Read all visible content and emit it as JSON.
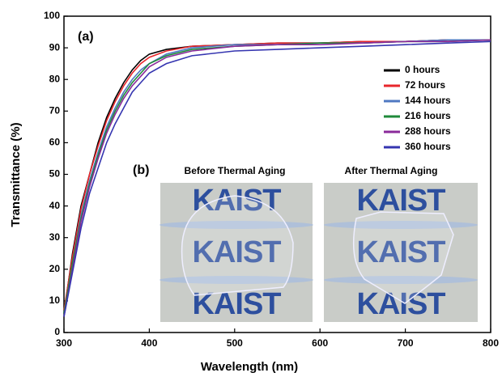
{
  "chart_data": {
    "type": "line",
    "x_label": "Wavelength (nm)",
    "y_label": "Transmittance (%)",
    "x": [
      300,
      310,
      320,
      330,
      340,
      350,
      360,
      370,
      380,
      390,
      400,
      420,
      450,
      500,
      550,
      600,
      650,
      700,
      750,
      800
    ],
    "series": [
      {
        "name": "0 hours",
        "color": "#000000",
        "values": [
          6,
          25,
          40,
          50,
          60,
          68,
          74,
          79,
          83,
          86,
          88,
          89.5,
          90.5,
          91,
          91.5,
          91.5,
          92,
          92,
          92.5,
          92.5
        ]
      },
      {
        "name": "72 hours",
        "color": "#e8262b",
        "values": [
          7,
          24,
          39,
          50,
          59,
          67,
          73,
          78,
          82,
          85,
          87,
          89,
          90.5,
          91,
          91.5,
          91.5,
          92,
          92,
          92.5,
          92.5
        ]
      },
      {
        "name": "144 hours",
        "color": "#4f78c2",
        "values": [
          6,
          22,
          37,
          48,
          57,
          65,
          71,
          76,
          80,
          83,
          85,
          88,
          90,
          91,
          91,
          91.5,
          91.5,
          92,
          92.5,
          92.5
        ]
      },
      {
        "name": "216 hours",
        "color": "#1f8a3a",
        "values": [
          6,
          22,
          36,
          47,
          56,
          64,
          70,
          75,
          79,
          82,
          85,
          87.5,
          89.5,
          90.5,
          91,
          91.5,
          91.5,
          92,
          92,
          92.5
        ]
      },
      {
        "name": "288 hours",
        "color": "#8a2a9a",
        "values": [
          5,
          20,
          35,
          46,
          55,
          63,
          69,
          74,
          78,
          81,
          84,
          87,
          89,
          90.5,
          91,
          91,
          91.5,
          92,
          92,
          92.5
        ]
      },
      {
        "name": "360 hours",
        "color": "#3535b0",
        "values": [
          5,
          19,
          33,
          44,
          52,
          60,
          66,
          71,
          76,
          79,
          82,
          85,
          87.5,
          89,
          89.5,
          90,
          90.5,
          91,
          91.5,
          92
        ]
      }
    ],
    "xlim": [
      300,
      800
    ],
    "xticks": [
      300,
      400,
      500,
      600,
      700,
      800
    ],
    "ylim": [
      0,
      100
    ],
    "yticks": [
      0,
      10,
      20,
      30,
      40,
      50,
      60,
      70,
      80,
      90,
      100
    ],
    "panel_labels": [
      "(a)",
      "(b)"
    ],
    "inset_labels": [
      "Before Thermal Aging",
      "After Thermal Aging"
    ],
    "photo_text": "KAIST"
  }
}
